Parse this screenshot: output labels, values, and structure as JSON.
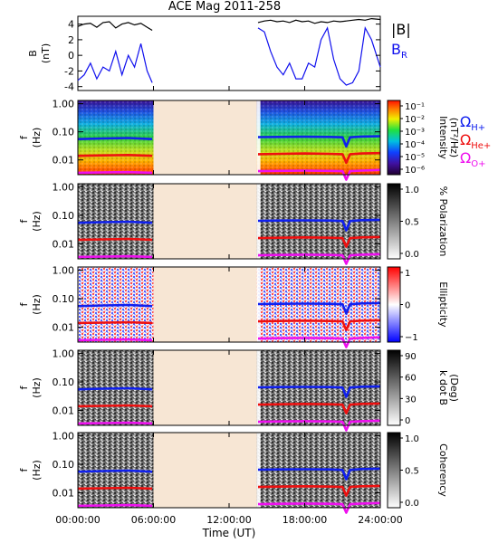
{
  "title": "ACE Mag 2011-258",
  "colors": {
    "B_total": "#000000",
    "B_R": "#1010ee",
    "gap": "#f7e6d4",
    "O_H": "#1020ee",
    "O_He": "#ee1010",
    "O_O": "#ee10ee"
  },
  "legend": {
    "b_total": "|B|",
    "b_r": "B",
    "b_r_sub": "R",
    "omega_h": "Ω",
    "omega_h_sub": "H+",
    "omega_he": "Ω",
    "omega_he_sub": "He+",
    "omega_o": "Ω",
    "omega_o_sub": "O+"
  },
  "x_axis": {
    "label": "Time (UT)",
    "ticks": [
      "00:00:00",
      "06:00:00",
      "12:00:00",
      "18:00:00",
      "24:00:00"
    ]
  },
  "chart_data": [
    {
      "type": "line",
      "panel": "magnetic-field",
      "ylabel": "B",
      "yunit": "(nT)",
      "ylim": [
        -4.5,
        5
      ],
      "yticks": [
        "4",
        "2",
        "0",
        "-2",
        "-4"
      ],
      "xlim": [
        0,
        24
      ],
      "data_gap_hours": [
        6.0,
        14.2
      ],
      "series": [
        {
          "name": "|B|",
          "x": [
            0,
            0.5,
            1,
            1.5,
            2,
            2.5,
            3,
            3.5,
            4,
            4.5,
            5,
            5.5,
            5.9,
            14.3,
            14.8,
            15.3,
            15.8,
            16.3,
            16.8,
            17.3,
            17.8,
            18.3,
            18.8,
            19.3,
            19.8,
            20.3,
            20.8,
            21.3,
            21.8,
            22.3,
            22.8,
            23.3,
            24
          ],
          "values": [
            3.7,
            4.0,
            4.1,
            3.6,
            4.2,
            4.3,
            3.5,
            4.0,
            4.2,
            3.9,
            4.1,
            3.6,
            3.2,
            4.2,
            4.4,
            4.5,
            4.3,
            4.4,
            4.2,
            4.5,
            4.3,
            4.4,
            4.1,
            4.3,
            4.2,
            4.4,
            4.3,
            4.4,
            4.5,
            4.6,
            4.5,
            4.7,
            4.6
          ]
        },
        {
          "name": "B_R",
          "x": [
            0,
            0.5,
            1,
            1.5,
            2,
            2.5,
            3,
            3.5,
            4,
            4.5,
            5,
            5.5,
            5.9,
            14.3,
            14.8,
            15.3,
            15.8,
            16.3,
            16.8,
            17.3,
            17.8,
            18.3,
            18.8,
            19.3,
            19.8,
            20.3,
            20.8,
            21.3,
            21.8,
            22.3,
            22.8,
            23.3,
            24
          ],
          "values": [
            -3.2,
            -2.5,
            -1.0,
            -3.0,
            -1.5,
            -2.0,
            0.5,
            -2.5,
            0.0,
            -1.5,
            1.5,
            -2.0,
            -3.5,
            3.5,
            3.0,
            0.5,
            -1.5,
            -2.5,
            -1.0,
            -3.0,
            -3.0,
            -1.0,
            -1.5,
            2.0,
            3.5,
            -0.5,
            -3.0,
            -3.8,
            -3.5,
            -2.0,
            3.5,
            2.0,
            -1.5
          ]
        }
      ]
    },
    {
      "type": "heatmap",
      "panel": "intensity",
      "ylabel": "f",
      "yunit": "(Hz)",
      "yscale": "log",
      "ylim": [
        0.003,
        1.3
      ],
      "yticks": [
        "1.00",
        "0.10",
        "0.01"
      ],
      "colorbar": {
        "label": "Intensity",
        "unit": "(nT²/Hz)",
        "scale": "log",
        "ticks": [
          "10⁻¹",
          "10⁻²",
          "10⁻³",
          "10⁻⁴",
          "10⁻⁵",
          "10⁻⁶"
        ],
        "range": [
          1e-06,
          0.1
        ]
      }
    },
    {
      "type": "heatmap",
      "panel": "polarization",
      "ylabel": "f",
      "yunit": "(Hz)",
      "yscale": "log",
      "yticks": [
        "1.00",
        "0.10",
        "0.01"
      ],
      "colorbar": {
        "label": "% Polarization",
        "ticks": [
          "1.0",
          "0.5",
          "0.0"
        ],
        "range": [
          0,
          1
        ]
      }
    },
    {
      "type": "heatmap",
      "panel": "ellipticity",
      "ylabel": "f",
      "yunit": "(Hz)",
      "yscale": "log",
      "yticks": [
        "1.00",
        "0.10",
        "0.01"
      ],
      "colorbar": {
        "label": "Ellipticity",
        "ticks": [
          "1",
          "0",
          "−1"
        ],
        "range": [
          -1,
          1
        ]
      }
    },
    {
      "type": "heatmap",
      "panel": "kdotb",
      "ylabel": "f",
      "yunit": "(Hz)",
      "yscale": "log",
      "yticks": [
        "1.00",
        "0.10",
        "0.01"
      ],
      "colorbar": {
        "label": "k dot B",
        "unit": "(Deg)",
        "ticks": [
          "90",
          "60",
          "30",
          "0"
        ],
        "range": [
          0,
          90
        ]
      }
    },
    {
      "type": "heatmap",
      "panel": "coherency",
      "ylabel": "f",
      "yunit": "(Hz)",
      "yscale": "log",
      "yticks": [
        "1.00",
        "0.10",
        "0.01"
      ],
      "colorbar": {
        "label": "Coherency",
        "ticks": [
          "1.0",
          "0.5",
          "0.0"
        ],
        "range": [
          0,
          1
        ]
      }
    }
  ],
  "gyrofrequencies": {
    "x": [
      0,
      2,
      4,
      5.9,
      14.3,
      16,
      18,
      20,
      21.0,
      21.3,
      21.6,
      22.5,
      24
    ],
    "H_plus_hz": [
      0.055,
      0.058,
      0.06,
      0.055,
      0.065,
      0.066,
      0.067,
      0.066,
      0.064,
      0.03,
      0.064,
      0.068,
      0.07
    ],
    "He_plus_hz": [
      0.014,
      0.0145,
      0.015,
      0.014,
      0.016,
      0.0165,
      0.017,
      0.0165,
      0.016,
      0.008,
      0.016,
      0.017,
      0.0175
    ],
    "O_plus_hz": [
      0.0035,
      0.0036,
      0.0037,
      0.0035,
      0.004,
      0.0041,
      0.0042,
      0.0041,
      0.004,
      0.002,
      0.004,
      0.0042,
      0.0044
    ]
  }
}
